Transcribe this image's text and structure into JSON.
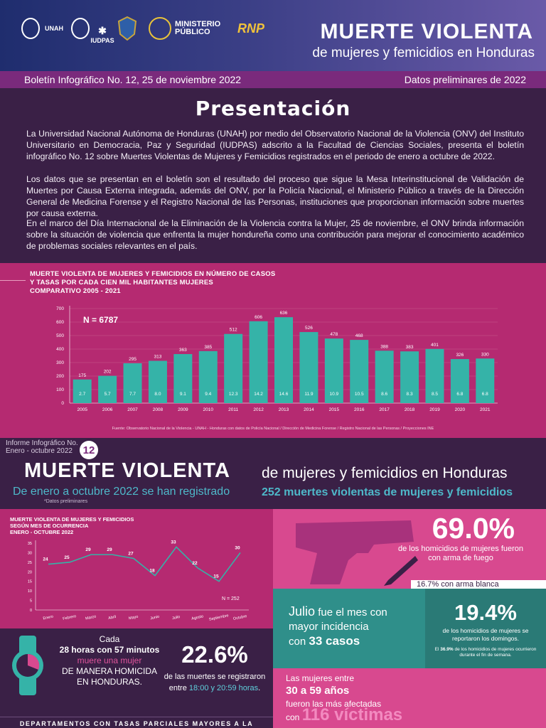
{
  "header": {
    "logos": [
      "UNAH",
      "IUDPAS",
      "MINISTERIO PÚBLICO",
      "RNP"
    ],
    "title": "MUERTE VIOLENTA",
    "subtitle": "de mujeres y femicidios en Honduras"
  },
  "bulletin": {
    "left": "Boletín Infográfico No. 12, 25 de noviembre 2022",
    "right": "Datos preliminares de 2022"
  },
  "presentacion": {
    "title": "Presentación",
    "paragraphs": [
      "La Universidad Nacional Autónoma de Honduras (UNAH) por medio del Observatorio Nacional de la Violencia (ONV) del Instituto Universitario en Democracia, Paz y Seguridad (IUDPAS) adscrito a la Facultad de Ciencias Sociales, presenta el boletín infográfico No. 12 sobre Muertes Violentas de Mujeres y Femicidios registrados en el periodo de enero a octubre de 2022.",
      "Los datos que se presentan en el boletín son el resultado del proceso que sigue la Mesa Interinstitucional de Validación de Muertes por Causa Externa integrada, además del ONV, por la Policía Nacional, el Ministerio Público a través de la Dirección General de Medicina Forense y el Registro Nacional de las Personas, instituciones que proporcionan información sobre muertes por causa externa.",
      "En el marco del Día Internacional de la Eliminación de la Violencia contra la Mujer, 25 de noviembre, el ONV brinda información sobre la situación de violencia que enfrenta la mujer hondureña como una contribución para mejorar el conocimiento académico de problemas sociales relevantes en el país."
    ]
  },
  "chart_data": [
    {
      "type": "bar",
      "title": "MUERTE VIOLENTA DE MUJERES Y FEMICIDIOS EN NÚMERO DE CASOS Y TASAS POR CADA CIEN MIL HABITANTES MUJERES COMPARATIVO 2005 - 2021",
      "title_lines": [
        "MUERTE VIOLENTA DE MUJERES Y FEMICIDIOS EN NÚMERO DE CASOS",
        "Y TASAS POR CADA CIEN MIL HABITANTES MUJERES",
        "COMPARATIVO 2005 - 2021"
      ],
      "annotation": "N = 6787",
      "categories": [
        "2005",
        "2006",
        "2007",
        "2008",
        "2009",
        "2010",
        "2011",
        "2012",
        "2013",
        "2014",
        "2015",
        "2016",
        "2017",
        "2018",
        "2019",
        "2020",
        "2021"
      ],
      "series": [
        {
          "values": [
            175,
            202,
            295,
            313,
            363,
            385,
            512,
            606,
            636,
            526,
            478,
            468,
            388,
            383,
            401,
            326,
            330
          ]
        },
        {
          "values": [
            2.7,
            5.7,
            7.7,
            8.0,
            9.1,
            9.4,
            12.3,
            14.2,
            14.6,
            11.9,
            10.9,
            10.5,
            8.6,
            8.3,
            8.5,
            6.8,
            6.8
          ]
        }
      ],
      "rate_labels": [
        "2.7",
        "5.7",
        "7.7",
        "8.0",
        "9.1",
        "9.4",
        "12.3",
        "14.2",
        "14.6",
        "11.9",
        "10.9",
        "10.5",
        "8.6",
        "8.3",
        "8.5",
        "6.8",
        "6.8"
      ],
      "y_ticks": [
        0,
        100,
        200,
        300,
        400,
        500,
        600,
        700
      ],
      "ylim": [
        0,
        700
      ],
      "source": "Fuente: Observatorio Nacional de la Violencia - UNAH - Honduras con datos de Policía Nacional / Dirección de Medicina Forense / Registro Nacional de las Personas / Proyecciones INE"
    },
    {
      "type": "line",
      "title": "MUERTE VIOLENTA DE MUJERES Y FEMICIDIOS SEGÚN MES DE OCURRENCIA ENERO - OCTUBRE 2022",
      "title_lines": [
        "MUERTE VIOLENTA DE MUJERES Y FEMICIDIOS",
        "SEGÚN MES DE OCURRENCIA",
        "ENERO - OCTUBRE 2022"
      ],
      "annotation": "N = 252",
      "categories": [
        "Enero",
        "Febrero",
        "Marzo",
        "Abril",
        "Mayo",
        "Junio",
        "Julio",
        "Agosto",
        "Septiembre",
        "Octubre"
      ],
      "values": [
        24,
        25,
        29,
        29,
        27,
        18,
        33,
        22,
        15,
        30
      ],
      "y_ticks": [
        0,
        5,
        10,
        15,
        20,
        25,
        30,
        35
      ],
      "ylim": [
        0,
        35
      ]
    }
  ],
  "informe": {
    "label_line1": "Informe Infográfico  No.",
    "label_line2": "Enero - octubre 2022",
    "number": "12",
    "big_title": "MUERTE VIOLENTA",
    "subtitle": "de mujeres y femicidios en Honduras",
    "lead": "De enero a octubre 2022 se han registrado",
    "count": "252 muertes violentas de mujeres y femicidios",
    "note": "*Datos preliminares"
  },
  "gun": {
    "pct": "69.0%",
    "desc": "de los homicidios de mujeres fueron con arma de fuego",
    "knife": "16.7% con arma blanca"
  },
  "julio": {
    "word": "Julio",
    "text1": " fue el mes con",
    "text2": "mayor incidencia",
    "text3": "con ",
    "cases": "33 casos"
  },
  "sunday": {
    "pct": "19.4%",
    "desc": "de los homicidios de mujeres se reportaron los domingos.",
    "note_pct": "36.9%",
    "note": "de los homicidios de mujeres ocurrieron durante el fin de semana.",
    "note_prefix": "El "
  },
  "clock": {
    "line1": "Cada",
    "line2": "28 horas con 57 minutos",
    "line3": "muere una mujer",
    "line4": "DE MANERA HOMICIDA",
    "line5": "EN HONDURAS."
  },
  "hours": {
    "pct": "22.6%",
    "desc1": "de las muertes se registraron",
    "desc2a": "entre ",
    "desc2b": "18:00 y 20:59 horas",
    "desc2c": "."
  },
  "age": {
    "line1": "Las mujeres entre",
    "range": "30 a 59 años",
    "line3": "fueron las más afectadas",
    "line4a": "con",
    "victims": "116 víctimas"
  },
  "footer": {
    "text": "DEPARTAMENTOS CON TASAS PARCIALES MAYORES A LA NACIONAL"
  },
  "colors": {
    "purple": "#3a2046",
    "magenta": "#b52a71",
    "pink": "#d8498f",
    "teal": "#2f8f8a",
    "bar": "#35b3a8"
  }
}
